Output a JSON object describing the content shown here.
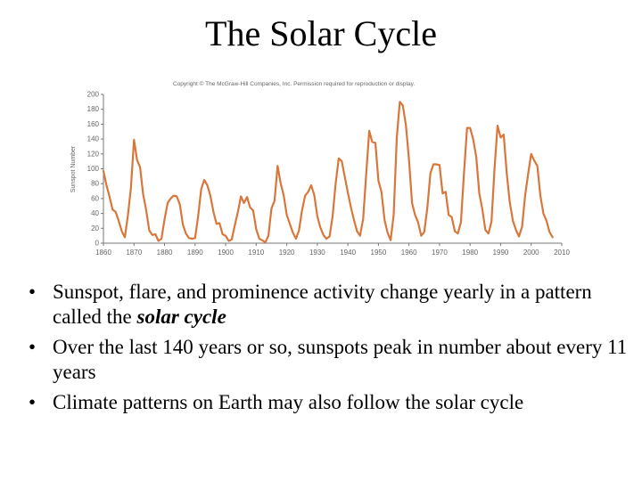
{
  "title": "The Solar Cycle",
  "chart_data": {
    "type": "line",
    "copyright": "Copyright © The McGraw-Hill Companies, Inc. Permission required for reproduction or display.",
    "title": "",
    "xlabel": "",
    "ylabel": "Sunspot Number",
    "xlim": [
      1860,
      2010
    ],
    "ylim": [
      0,
      200
    ],
    "x_ticks": [
      1860,
      1870,
      1880,
      1890,
      1900,
      1910,
      1920,
      1930,
      1940,
      1950,
      1960,
      1970,
      1980,
      1990,
      2000,
      2010
    ],
    "y_ticks": [
      0,
      20,
      40,
      60,
      80,
      100,
      120,
      140,
      160,
      180,
      200
    ],
    "grid": false,
    "line_color": "#d9773b",
    "series": [
      {
        "name": "Sunspot Number",
        "x": [
          1860,
          1861,
          1862,
          1863,
          1864,
          1865,
          1866,
          1867,
          1868,
          1869,
          1870,
          1871,
          1872,
          1873,
          1874,
          1875,
          1876,
          1877,
          1878,
          1879,
          1880,
          1881,
          1882,
          1883,
          1884,
          1885,
          1886,
          1887,
          1888,
          1889,
          1890,
          1891,
          1892,
          1893,
          1894,
          1895,
          1896,
          1897,
          1898,
          1899,
          1900,
          1901,
          1902,
          1903,
          1904,
          1905,
          1906,
          1907,
          1908,
          1909,
          1910,
          1911,
          1912,
          1913,
          1914,
          1915,
          1916,
          1917,
          1918,
          1919,
          1920,
          1921,
          1922,
          1923,
          1924,
          1925,
          1926,
          1927,
          1928,
          1929,
          1930,
          1931,
          1932,
          1933,
          1934,
          1935,
          1936,
          1937,
          1938,
          1939,
          1940,
          1941,
          1942,
          1943,
          1944,
          1945,
          1946,
          1947,
          1948,
          1949,
          1950,
          1951,
          1952,
          1953,
          1954,
          1955,
          1956,
          1957,
          1958,
          1959,
          1960,
          1961,
          1962,
          1963,
          1964,
          1965,
          1966,
          1967,
          1968,
          1969,
          1970,
          1971,
          1972,
          1973,
          1974,
          1975,
          1976,
          1977,
          1978,
          1979,
          1980,
          1981,
          1982,
          1983,
          1984,
          1985,
          1986,
          1987,
          1988,
          1989,
          1990,
          1991,
          1992,
          1993,
          1994,
          1995,
          1996,
          1997,
          1998,
          1999,
          2000,
          2001,
          2002,
          2003,
          2004,
          2005,
          2006,
          2007
        ],
        "values": [
          97,
          78,
          62,
          45,
          42,
          30,
          16,
          8,
          37,
          74,
          139,
          112,
          102,
          66,
          44,
          17,
          11,
          12,
          3,
          6,
          32,
          54,
          60,
          64,
          63,
          52,
          25,
          13,
          7,
          6,
          7,
          36,
          73,
          85,
          78,
          64,
          42,
          26,
          27,
          12,
          10,
          3,
          5,
          24,
          42,
          63,
          54,
          62,
          48,
          44,
          19,
          6,
          4,
          1,
          10,
          47,
          57,
          104,
          81,
          64,
          38,
          26,
          14,
          6,
          17,
          44,
          64,
          69,
          78,
          65,
          36,
          21,
          11,
          6,
          9,
          36,
          80,
          114,
          110,
          89,
          68,
          48,
          31,
          16,
          10,
          33,
          93,
          151,
          136,
          135,
          84,
          69,
          31,
          14,
          4,
          38,
          142,
          190,
          185,
          159,
          112,
          54,
          38,
          28,
          10,
          15,
          47,
          94,
          106,
          106,
          105,
          67,
          69,
          38,
          35,
          16,
          13,
          28,
          93,
          155,
          155,
          140,
          116,
          67,
          46,
          18,
          13,
          29,
          100,
          158,
          142,
          146,
          94,
          55,
          30,
          18,
          9,
          22,
          64,
          93,
          120,
          111,
          104,
          64,
          40,
          30,
          15,
          8
        ]
      }
    ]
  },
  "bullets": [
    {
      "before": "Sunspot, flare, and prominence activity change yearly in a pattern called the ",
      "emphasis": "solar cycle",
      "after": ""
    },
    {
      "before": "Over the last 140 years or so, sunspots peak in number about every 11 years",
      "emphasis": "",
      "after": ""
    },
    {
      "before": "Climate patterns on Earth may also follow the solar cycle",
      "emphasis": "",
      "after": ""
    }
  ]
}
